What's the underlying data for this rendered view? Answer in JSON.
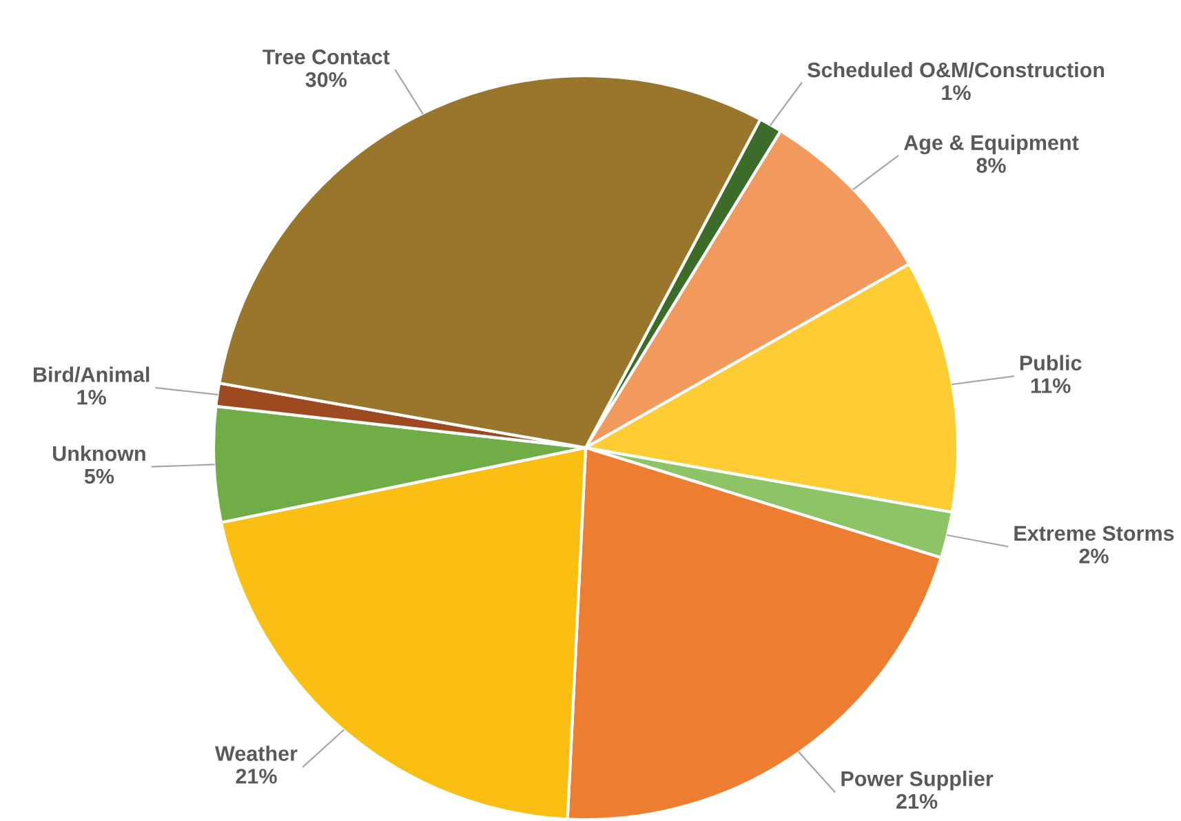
{
  "chart_data": {
    "type": "pie",
    "categories": [
      "Scheduled O&M/Construction",
      "Age & Equipment",
      "Public",
      "Extreme Storms",
      "Power Supplier",
      "Weather",
      "Unknown",
      "Bird/Animal",
      "Tree Contact"
    ],
    "values": [
      1,
      8,
      11,
      2,
      21,
      21,
      5,
      1,
      30
    ],
    "value_labels": [
      "1%",
      "8%",
      "11%",
      "2%",
      "21%",
      "21%",
      "5%",
      "1%",
      "30%"
    ],
    "colors": [
      "#3d6b2a",
      "#f2995e",
      "#ffcd33",
      "#8dc466",
      "#ed7d31",
      "#fbbf13",
      "#70ad47",
      "#9e4a20",
      "#99762b"
    ],
    "legend": false
  }
}
